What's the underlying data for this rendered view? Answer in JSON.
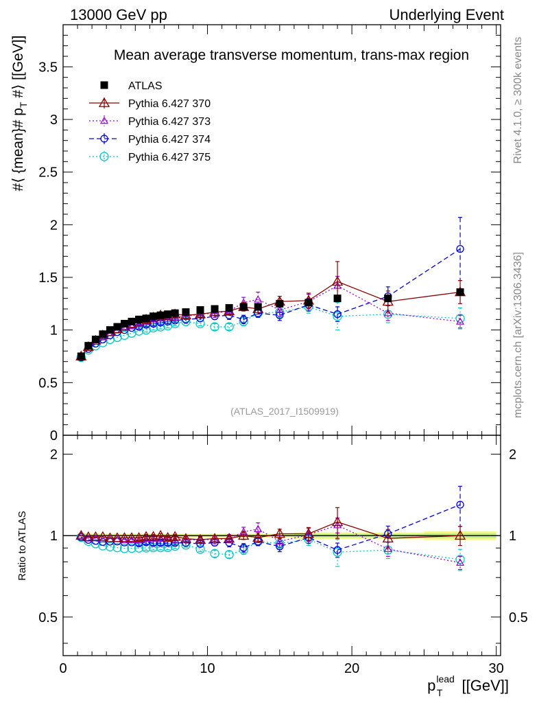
{
  "header": {
    "left": "13000 GeV pp",
    "right": "Underlying Event"
  },
  "side_labels": {
    "rivet": "Rivet 4.1.0, ≥ 300k events",
    "mcplots": "mcplots.cern.ch [arXiv:1306.3436]"
  },
  "chart_data": {
    "type": "scatter",
    "title": "Mean average transverse momentum, trans-max region",
    "analysis_label": "(ATLAS_2017_I1509919)",
    "ylabel": "#⟨ {mean}# p_T #⟩ [[GeV]]",
    "ylabel_main": "#⟨ {mean}# p",
    "ylabel_sub": "T",
    "ylabel_tail": " #⟩ [[GeV]]",
    "xlabel_main": "p",
    "xlabel_sub": "T",
    "xlabel_sup": "lead",
    "xlabel_tail": " [[GeV]]",
    "xlim": [
      0,
      30.3
    ],
    "ylim": [
      0,
      3.9
    ],
    "ratio_ylabel": "Ratio to ATLAS",
    "ratio_ylim": [
      0.36,
      2.35
    ],
    "x_ticks": [
      "0",
      "10",
      "20",
      "30"
    ],
    "y_ticks": [
      "0",
      "0.5",
      "1",
      "1.5",
      "2",
      "2.5",
      "3",
      "3.5"
    ],
    "ratio_ticks": [
      "0.5",
      "1",
      "2"
    ],
    "legend": [
      "ATLAS",
      "Pythia 6.427 370",
      "Pythia 6.427 373",
      "Pythia 6.427 374",
      "Pythia 6.427 375"
    ],
    "x": [
      1.25,
      1.75,
      2.25,
      2.75,
      3.25,
      3.75,
      4.25,
      4.75,
      5.25,
      5.75,
      6.25,
      6.75,
      7.25,
      7.75,
      8.5,
      9.5,
      10.5,
      11.5,
      12.5,
      13.5,
      15,
      17,
      19,
      22.5,
      27.5
    ],
    "series": [
      {
        "name": "ATLAS",
        "color": "#000000",
        "marker": "square",
        "dash": "",
        "values": [
          0.75,
          0.85,
          0.91,
          0.96,
          1.0,
          1.03,
          1.06,
          1.08,
          1.1,
          1.11,
          1.13,
          1.14,
          1.15,
          1.16,
          1.17,
          1.19,
          1.2,
          1.21,
          1.22,
          1.22,
          1.25,
          1.26,
          1.3,
          1.3,
          1.36
        ],
        "errors": [
          0.01,
          0.01,
          0.01,
          0.01,
          0.01,
          0.01,
          0.01,
          0.01,
          0.01,
          0.01,
          0.01,
          0.01,
          0.01,
          0.01,
          0.01,
          0.01,
          0.01,
          0.01,
          0.01,
          0.01,
          0.01,
          0.02,
          0.02,
          0.02,
          0.03
        ]
      },
      {
        "name": "Pythia 6.427 370",
        "color": "#8b0000",
        "marker": "triangle",
        "dash": "",
        "values": [
          0.75,
          0.84,
          0.9,
          0.95,
          0.98,
          1.01,
          1.04,
          1.06,
          1.08,
          1.1,
          1.12,
          1.14,
          1.13,
          1.15,
          1.14,
          1.15,
          1.17,
          1.18,
          1.22,
          1.2,
          1.27,
          1.28,
          1.46,
          1.27,
          1.36
        ],
        "errors": [
          0.01,
          0.01,
          0.01,
          0.01,
          0.01,
          0.01,
          0.01,
          0.01,
          0.02,
          0.02,
          0.02,
          0.02,
          0.02,
          0.02,
          0.03,
          0.03,
          0.03,
          0.03,
          0.04,
          0.05,
          0.05,
          0.07,
          0.19,
          0.1,
          0.11
        ]
      },
      {
        "name": "Pythia 6.427 373",
        "color": "#9400d3",
        "marker": "triangle-small",
        "dash": "2,3",
        "values": [
          0.75,
          0.83,
          0.89,
          0.93,
          0.97,
          1.0,
          1.02,
          1.04,
          1.06,
          1.08,
          1.1,
          1.11,
          1.12,
          1.12,
          1.13,
          1.15,
          1.16,
          1.18,
          1.26,
          1.29,
          1.19,
          1.27,
          1.42,
          1.16,
          1.08
        ],
        "errors": [
          0.01,
          0.01,
          0.01,
          0.01,
          0.01,
          0.01,
          0.01,
          0.02,
          0.02,
          0.02,
          0.02,
          0.02,
          0.02,
          0.03,
          0.03,
          0.03,
          0.04,
          0.04,
          0.05,
          0.07,
          0.06,
          0.07,
          0.09,
          0.07,
          0.06
        ]
      },
      {
        "name": "Pythia 6.427 374",
        "color": "#0000dd",
        "marker": "circle",
        "dash": "7,4",
        "values": [
          0.74,
          0.82,
          0.87,
          0.91,
          0.95,
          0.98,
          1.0,
          1.02,
          1.03,
          1.05,
          1.06,
          1.07,
          1.08,
          1.09,
          1.1,
          1.11,
          1.13,
          1.14,
          1.1,
          1.16,
          1.14,
          1.24,
          1.15,
          1.32,
          1.77
        ],
        "errors": [
          0.01,
          0.01,
          0.01,
          0.01,
          0.01,
          0.01,
          0.01,
          0.01,
          0.02,
          0.02,
          0.02,
          0.02,
          0.02,
          0.02,
          0.03,
          0.03,
          0.03,
          0.04,
          0.04,
          0.04,
          0.05,
          0.06,
          0.07,
          0.09,
          0.3
        ]
      },
      {
        "name": "Pythia 6.427 375",
        "color": "#00c8c0",
        "marker": "circle-large",
        "dash": "2,3",
        "values": [
          0.74,
          0.81,
          0.85,
          0.88,
          0.91,
          0.93,
          0.95,
          0.97,
          0.99,
          1.0,
          1.02,
          1.03,
          1.04,
          1.06,
          1.08,
          1.06,
          1.03,
          1.03,
          1.08,
          1.16,
          1.17,
          1.22,
          1.13,
          1.15,
          1.11
        ],
        "errors": [
          0.01,
          0.01,
          0.01,
          0.01,
          0.01,
          0.01,
          0.01,
          0.01,
          0.01,
          0.02,
          0.02,
          0.02,
          0.02,
          0.02,
          0.02,
          0.02,
          0.03,
          0.03,
          0.04,
          0.04,
          0.05,
          0.06,
          0.13,
          0.08,
          0.1
        ]
      }
    ]
  }
}
